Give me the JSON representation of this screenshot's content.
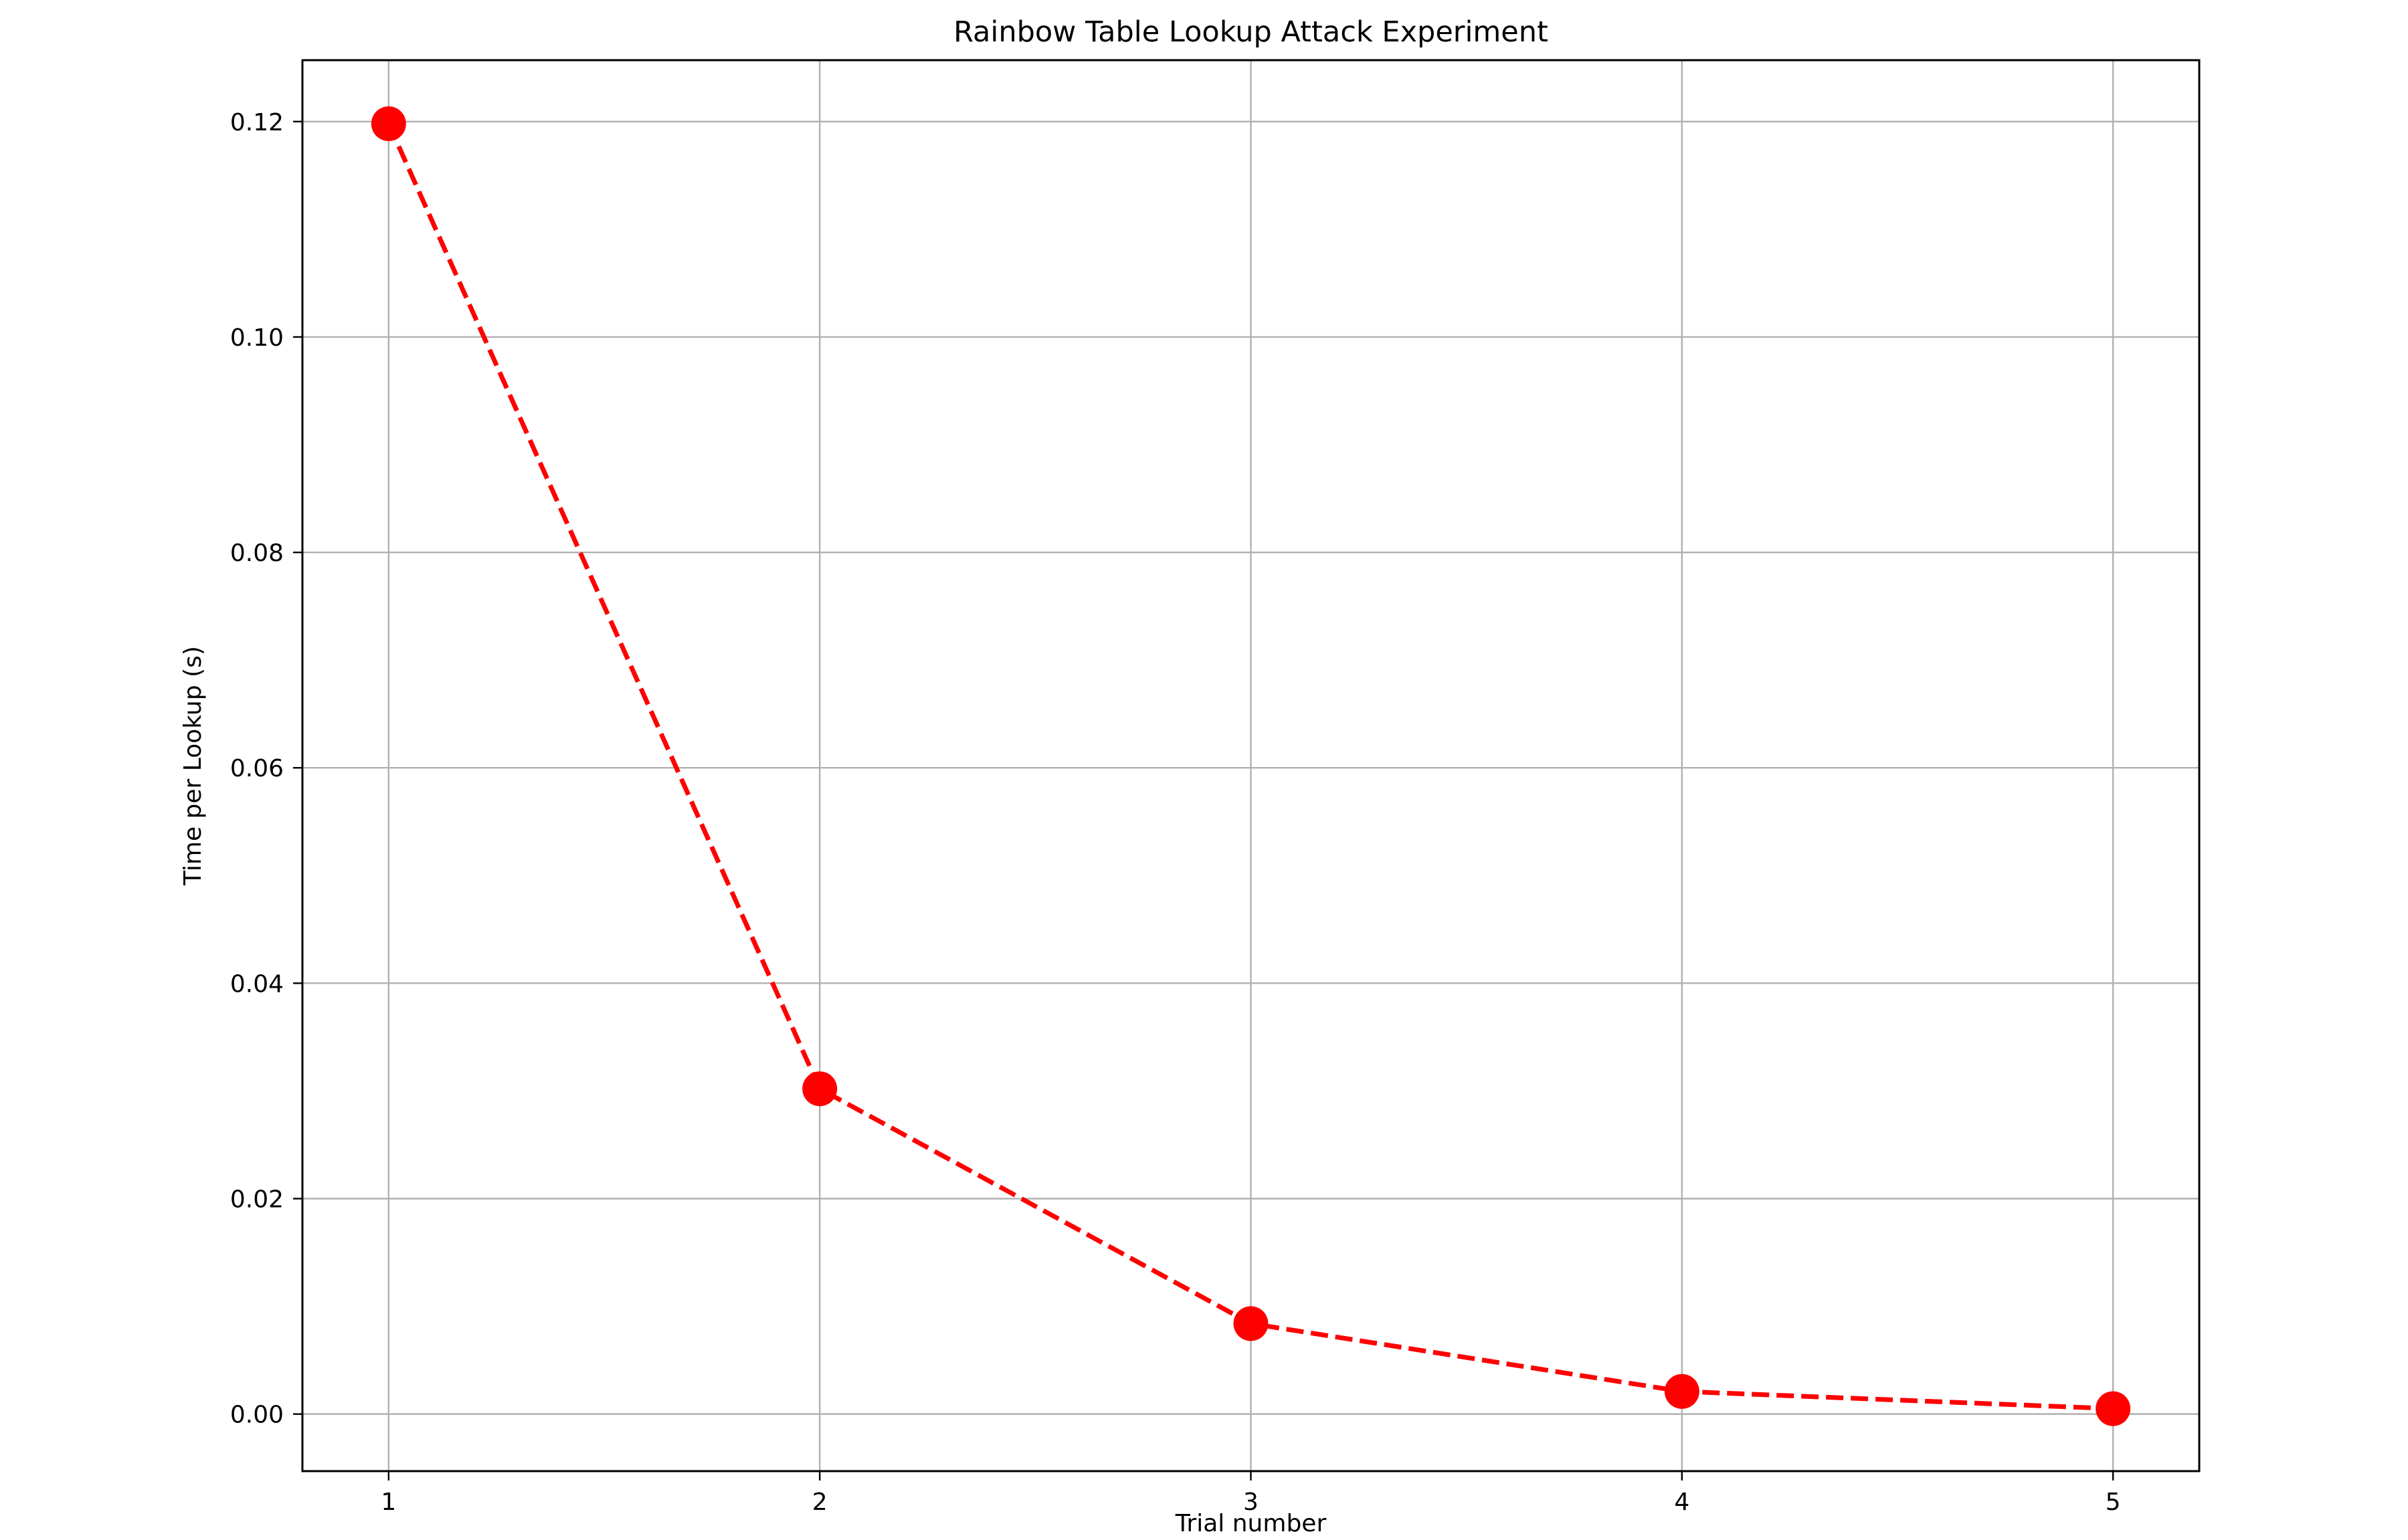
{
  "chart_data": {
    "type": "line",
    "title": "Rainbow Table Lookup Attack Experiment",
    "xlabel": "Trial number",
    "ylabel": "Time per Lookup (s)",
    "x": [
      1,
      2,
      3,
      4,
      5
    ],
    "series": [
      {
        "values": [
          0.1198,
          0.0302,
          0.0084,
          0.0021,
          0.0005
        ],
        "color": "#ff0000",
        "line_style": "dashed",
        "marker": "circle"
      }
    ],
    "xticks": [
      "1",
      "2",
      "3",
      "4",
      "5"
    ],
    "yticks": [
      "0.00",
      "0.02",
      "0.04",
      "0.06",
      "0.08",
      "0.10",
      "0.12"
    ],
    "xlim": [
      0.8,
      5.2
    ],
    "ylim": [
      -0.0053,
      0.1257
    ],
    "grid": true,
    "grid_color": "#b0b0b0",
    "axis_color": "#000000"
  }
}
